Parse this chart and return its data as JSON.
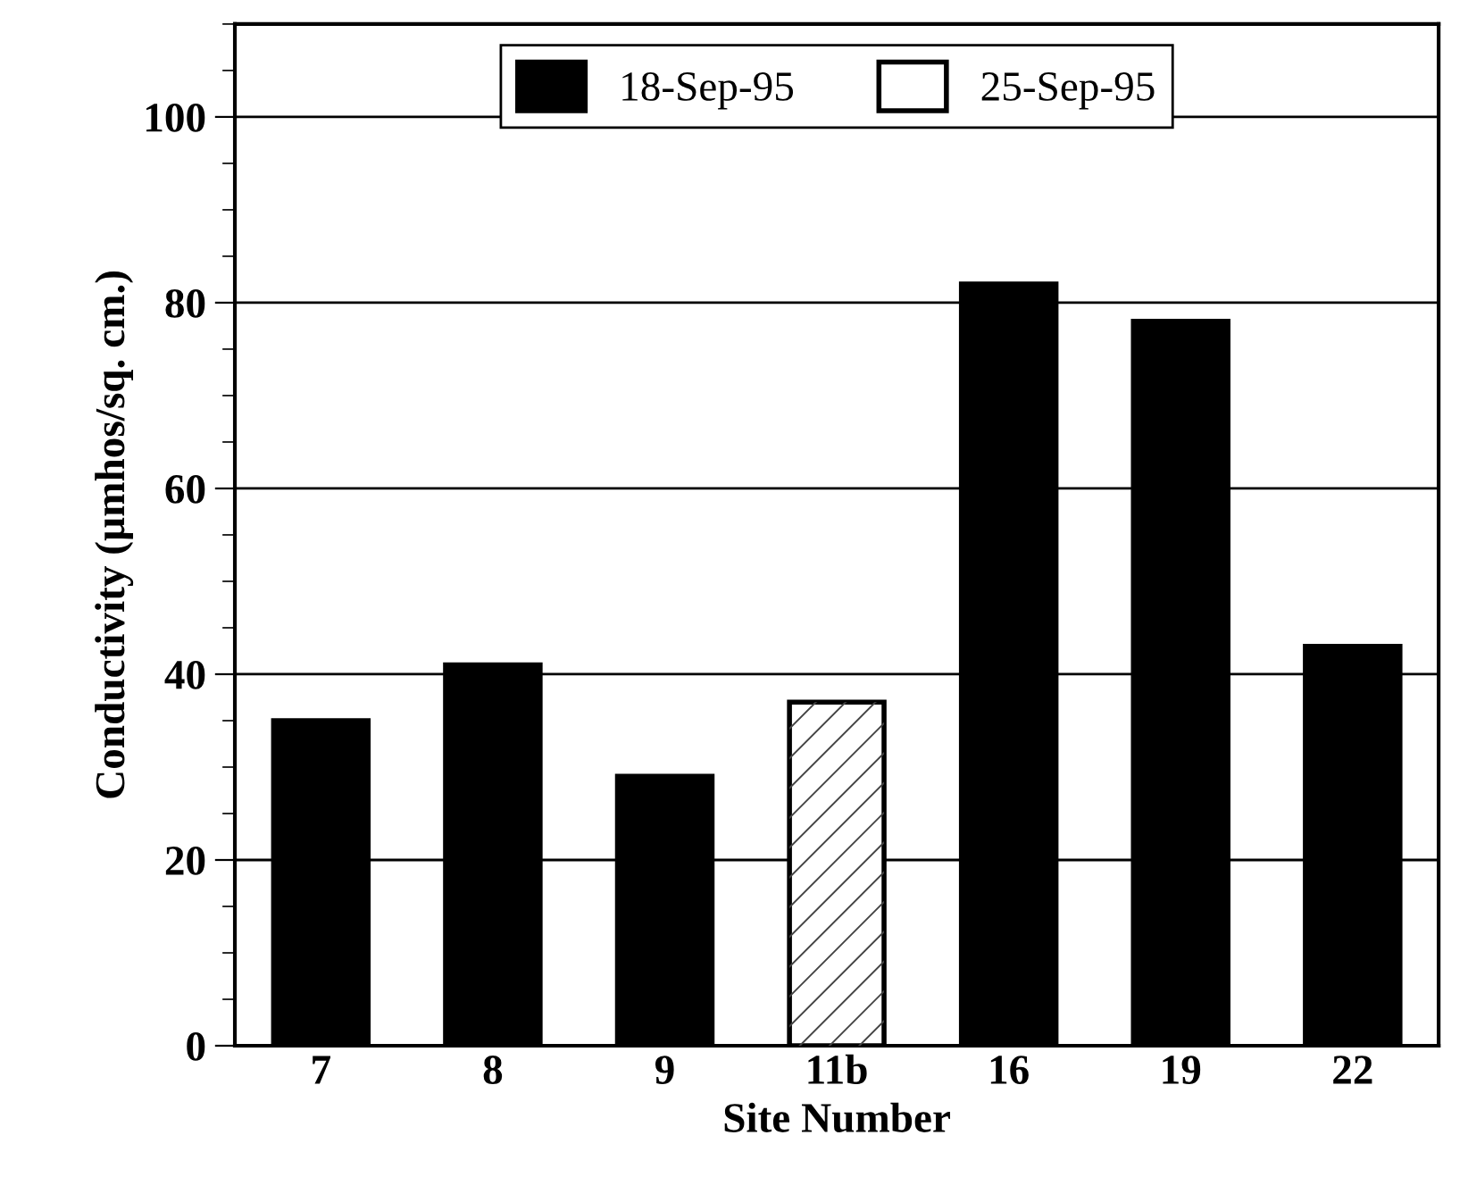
{
  "chart_data": {
    "type": "bar",
    "xlabel": "Site Number",
    "ylabel": "Conductivity (µmhos/sq. cm.)",
    "categories": [
      "7",
      "8",
      "9",
      "11b",
      "16",
      "19",
      "22"
    ],
    "series": [
      {
        "name": "18-Sep-95",
        "color": "#000000",
        "values": [
          35,
          41,
          29,
          null,
          82,
          78,
          43
        ]
      },
      {
        "name": "25-Sep-95",
        "color": "#ffffff",
        "values": [
          null,
          null,
          null,
          37,
          null,
          null,
          null
        ]
      }
    ],
    "ylim": [
      0,
      110
    ],
    "yticks": [
      0,
      20,
      40,
      60,
      80,
      100
    ],
    "grid": "y",
    "legend": "top"
  }
}
